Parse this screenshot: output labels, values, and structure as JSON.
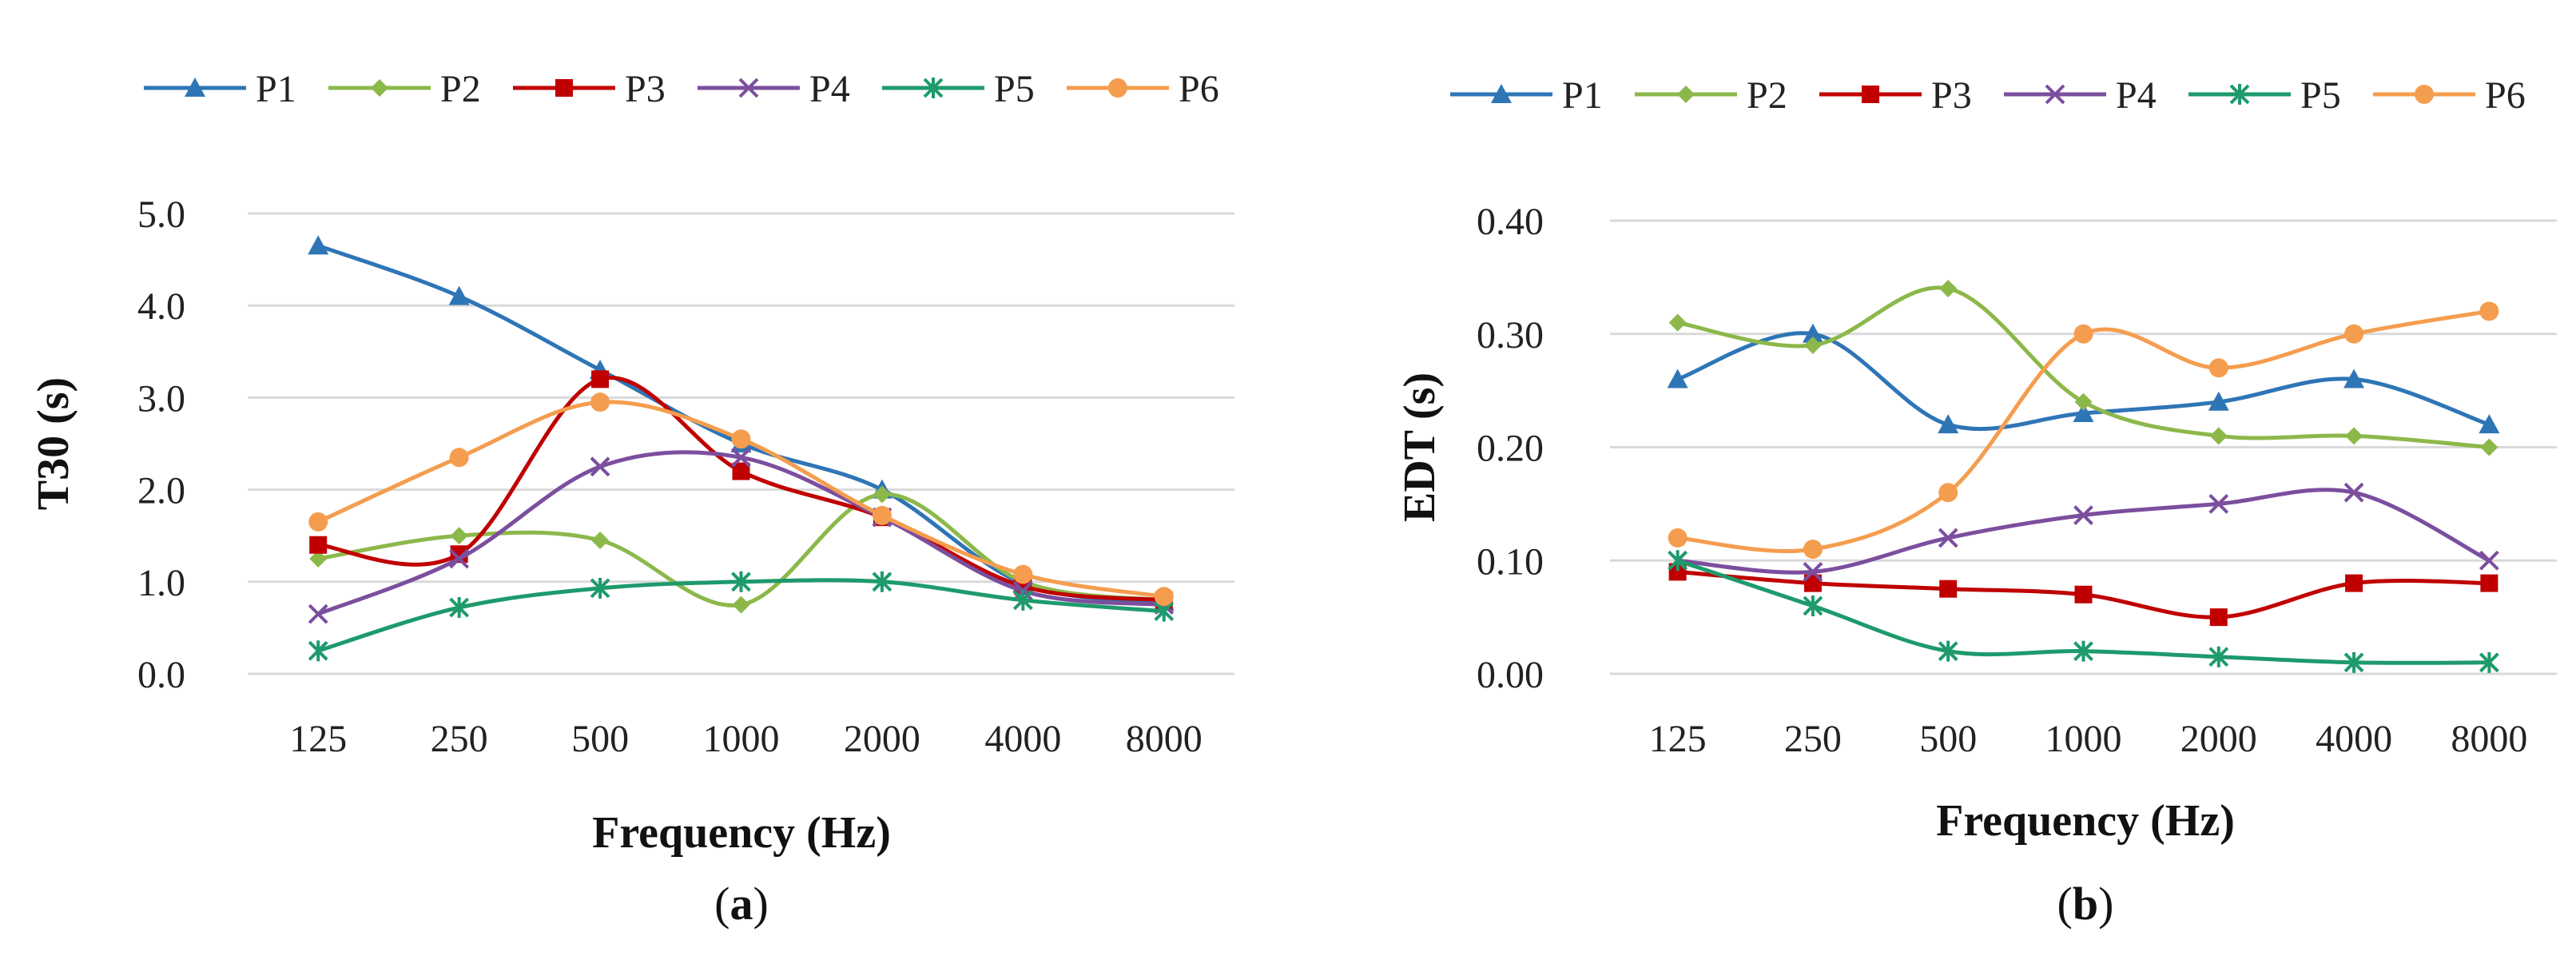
{
  "chart_data": [
    {
      "type": "line",
      "caption_letter": "a",
      "xlabel": "Frequency (Hz)",
      "ylabel": "T30 (s)",
      "ylim": [
        0,
        5
      ],
      "yticks": [
        "0.0",
        "1.0",
        "2.0",
        "3.0",
        "4.0",
        "5.0"
      ],
      "grid": true,
      "legend_position": "top",
      "categories": [
        "125",
        "250",
        "500",
        "1000",
        "2000",
        "4000",
        "8000"
      ],
      "series": [
        {
          "name": "P1",
          "color": "#2e75b6",
          "marker": "triangle",
          "values": [
            4.65,
            4.1,
            3.3,
            2.5,
            2.0,
            0.98,
            0.78
          ]
        },
        {
          "name": "P2",
          "color": "#8cb84a",
          "marker": "diamond",
          "values": [
            1.25,
            1.5,
            1.45,
            0.75,
            1.95,
            1.0,
            0.8
          ]
        },
        {
          "name": "P3",
          "color": "#c00000",
          "marker": "square",
          "values": [
            1.4,
            1.3,
            3.2,
            2.2,
            1.7,
            0.95,
            0.8
          ]
        },
        {
          "name": "P4",
          "color": "#7b4e9e",
          "marker": "x",
          "values": [
            0.65,
            1.25,
            2.25,
            2.35,
            1.7,
            0.9,
            0.75
          ]
        },
        {
          "name": "P5",
          "color": "#1e9a6c",
          "marker": "star",
          "values": [
            0.25,
            0.72,
            0.93,
            1.0,
            1.0,
            0.8,
            0.68
          ]
        },
        {
          "name": "P6",
          "color": "#f59d4f",
          "marker": "circle",
          "values": [
            1.65,
            2.35,
            2.95,
            2.55,
            1.72,
            1.08,
            0.84
          ]
        }
      ]
    },
    {
      "type": "line",
      "caption_letter": "b",
      "xlabel": "Frequency (Hz)",
      "ylabel": "EDT (s)",
      "ylim": [
        0,
        0.4
      ],
      "yticks": [
        "0.00",
        "0.10",
        "0.20",
        "0.30",
        "0.40"
      ],
      "grid": true,
      "legend_position": "top",
      "categories": [
        "125",
        "250",
        "500",
        "1000",
        "2000",
        "4000",
        "8000"
      ],
      "series": [
        {
          "name": "P1",
          "color": "#2e75b6",
          "marker": "triangle",
          "values": [
            0.26,
            0.3,
            0.22,
            0.23,
            0.24,
            0.26,
            0.22
          ]
        },
        {
          "name": "P2",
          "color": "#8cb84a",
          "marker": "diamond",
          "values": [
            0.31,
            0.29,
            0.34,
            0.24,
            0.21,
            0.21,
            0.2
          ]
        },
        {
          "name": "P3",
          "color": "#c00000",
          "marker": "square",
          "values": [
            0.09,
            0.08,
            0.075,
            0.07,
            0.05,
            0.08,
            0.08
          ]
        },
        {
          "name": "P4",
          "color": "#7b4e9e",
          "marker": "x",
          "values": [
            0.1,
            0.09,
            0.12,
            0.14,
            0.15,
            0.16,
            0.1
          ]
        },
        {
          "name": "P5",
          "color": "#1e9a6c",
          "marker": "star",
          "values": [
            0.1,
            0.06,
            0.02,
            0.02,
            0.015,
            0.01,
            0.01
          ]
        },
        {
          "name": "P6",
          "color": "#f59d4f",
          "marker": "circle",
          "values": [
            0.12,
            0.11,
            0.16,
            0.3,
            0.27,
            0.3,
            0.32
          ]
        }
      ]
    }
  ]
}
